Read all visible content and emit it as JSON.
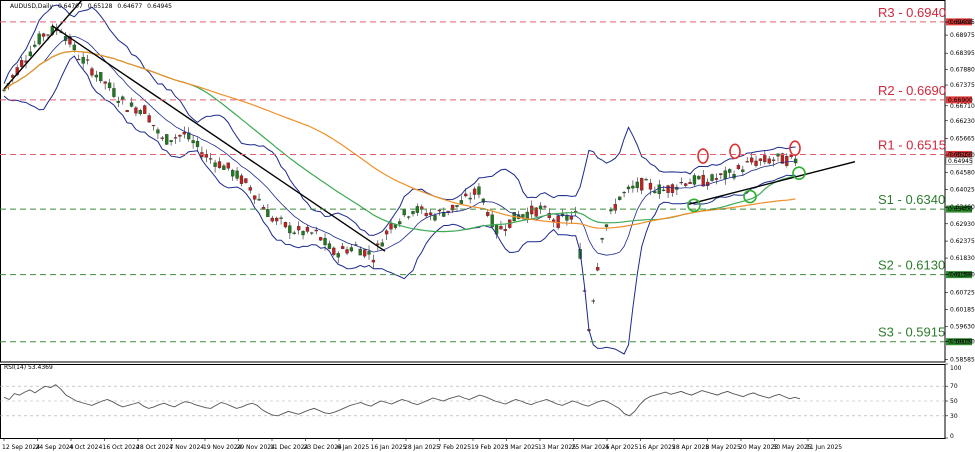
{
  "chart_data": {
    "type": "candlestick",
    "header": {
      "symbol": "AUDUSD,Daily",
      "open": "0.64707",
      "high": "0.65128",
      "low": "0.64677",
      "close": "0.64945"
    },
    "price_ticks": [
      "0.70070",
      "0.69395",
      "0.68975",
      "0.68395",
      "0.67880",
      "0.67375",
      "0.66710",
      "0.66230",
      "0.65665",
      "0.65130",
      "0.64580",
      "0.64025",
      "0.63460",
      "0.62930",
      "0.62375",
      "0.61830",
      "0.61300",
      "0.60725",
      "0.60185",
      "0.59630",
      "0.59150",
      "0.58585"
    ],
    "date_ticks": [
      "12 Sep 2024",
      "24 Sep 2024",
      "4 Oct 2024",
      "16 Oct 2024",
      "28 Oct 2024",
      "7 Nov 2024",
      "19 Nov 2024",
      "29 Nov 2024",
      "11 Dec 2024",
      "23 Dec 2024",
      "6 Jan 2025",
      "16 Jan 2025",
      "28 Jan 2025",
      "7 Feb 2025",
      "19 Feb 2025",
      "3 Mar 2025",
      "13 Mar 2025",
      "25 Mar 2025",
      "4 Apr 2025",
      "16 Apr 2025",
      "28 Apr 2025",
      "8 May 2025",
      "20 May 2025",
      "30 May 2025",
      "11 Jun 2025"
    ],
    "levels": [
      {
        "label": "R3 - 0.6940",
        "price": 0.694,
        "tag": "0.69400",
        "color": "#e06070",
        "text_color": "#d0283c",
        "tag_bg": "#e03c3c"
      },
      {
        "label": "R2 - 0.6690",
        "price": 0.669,
        "tag": "0.66900",
        "color": "#e06070",
        "text_color": "#d0283c",
        "tag_bg": "#e03c3c"
      },
      {
        "label": "R1 - 0.6515",
        "price": 0.6515,
        "tag": "0.65150",
        "color": "#e06070",
        "text_color": "#d0283c",
        "tag_bg": "#e03c3c"
      },
      {
        "label": "S1 - 0.6340",
        "price": 0.634,
        "tag": "0.63400",
        "color": "#3c8c3c",
        "text_color": "#2e7d2e",
        "tag_bg": "#2e8b2e"
      },
      {
        "label": "S2 - 0.6130",
        "price": 0.613,
        "tag": "0.61300",
        "color": "#3c8c3c",
        "text_color": "#2e7d2e",
        "tag_bg": "#2e8b2e"
      },
      {
        "label": "S3 - 0.5915",
        "price": 0.5915,
        "tag": "0.59150",
        "color": "#3c8c3c",
        "text_color": "#2e7d2e",
        "tag_bg": "#2e8b2e"
      }
    ],
    "current_price": {
      "tag": "0.64945",
      "value": 0.64945
    },
    "rsi": {
      "title": "RSI(14) 53.4369",
      "value": 53.4369,
      "ticks": [
        "100",
        "70",
        "50",
        "30",
        "0"
      ],
      "series": [
        55,
        52,
        60,
        58,
        62,
        65,
        61,
        66,
        70,
        68,
        72,
        66,
        58,
        54,
        50,
        48,
        46,
        44,
        47,
        50,
        52,
        49,
        45,
        42,
        44,
        46,
        48,
        43,
        40,
        42,
        45,
        47,
        44,
        42,
        46,
        49,
        48,
        45,
        43,
        41,
        40,
        44,
        48,
        46,
        43,
        40,
        42,
        45,
        47,
        44,
        38,
        34,
        31,
        30,
        33,
        36,
        34,
        32,
        35,
        38,
        40,
        37,
        34,
        33,
        35,
        38,
        41,
        44,
        46,
        48,
        45,
        43,
        47,
        50,
        48,
        46,
        49,
        52,
        50,
        47,
        45,
        48,
        51,
        54,
        52,
        50,
        53,
        55,
        57,
        54,
        52,
        55,
        58,
        56,
        53,
        50,
        48,
        46,
        49,
        52,
        50,
        47,
        45,
        48,
        50,
        52,
        49,
        46,
        44,
        47,
        50,
        48,
        45,
        43,
        46,
        49,
        51,
        48,
        44,
        40,
        33,
        30,
        36,
        45,
        52,
        56,
        58,
        60,
        62,
        59,
        61,
        63,
        60,
        58,
        61,
        64,
        62,
        60,
        58,
        61,
        63,
        60,
        58,
        56,
        59,
        61,
        58,
        56,
        54,
        57,
        59,
        56,
        53,
        55,
        53
      ]
    },
    "ma_colors": {
      "bollinger": "#1c2a8c",
      "ma100": "#3daa55",
      "ma200": "#f0902a"
    },
    "candle_colors": {
      "up": "#1f7a1f",
      "down": "#c42020"
    },
    "price_range": [
      0.585,
      0.701
    ],
    "grid": false
  }
}
